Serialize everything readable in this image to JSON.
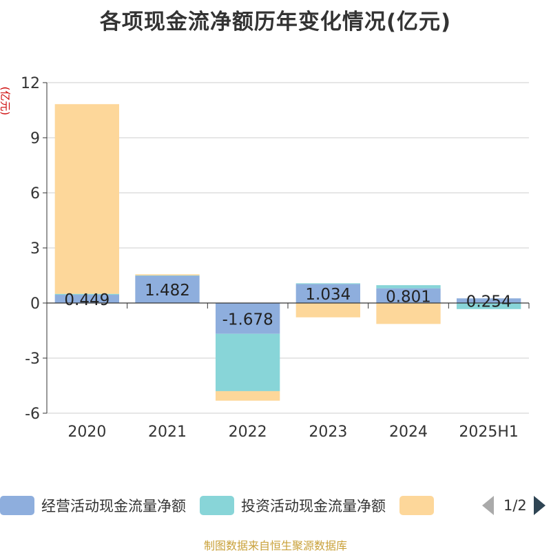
{
  "chart_data": {
    "type": "bar",
    "stacked": true,
    "title": "各项现金流净额历年变化情况(亿元)",
    "ylabel": "(亿元)",
    "categories": [
      "2020",
      "2021",
      "2022",
      "2023",
      "2024",
      "2025H1"
    ],
    "ylim": [
      -6,
      12
    ],
    "yticks": [
      -6,
      -3,
      0,
      3,
      6,
      9,
      12
    ],
    "grid": true,
    "legend_position": "bottom",
    "series": [
      {
        "name": "经营活动现金流量净额",
        "color": "#8eaedd",
        "values": [
          0.449,
          1.482,
          -1.678,
          1.034,
          0.801,
          0.254
        ],
        "labels": [
          "0.449",
          "1.482",
          "-1.678",
          "1.034",
          "0.801",
          "0.254"
        ]
      },
      {
        "name": "投资活动现金流量净额",
        "color": "#88d5d8",
        "values": [
          0.05,
          0.02,
          -3.12,
          0.04,
          0.17,
          -0.33
        ],
        "labels": []
      },
      {
        "name": "",
        "color": "#fdd79a",
        "values": [
          10.33,
          0.06,
          -0.52,
          -0.78,
          -1.14,
          0.0
        ],
        "labels": []
      }
    ]
  },
  "legend": {
    "pager": "1/2",
    "prev_icon": "triangle-left-icon",
    "next_icon": "triangle-right-icon"
  },
  "source": "制图数据来自恒生聚源数据库"
}
